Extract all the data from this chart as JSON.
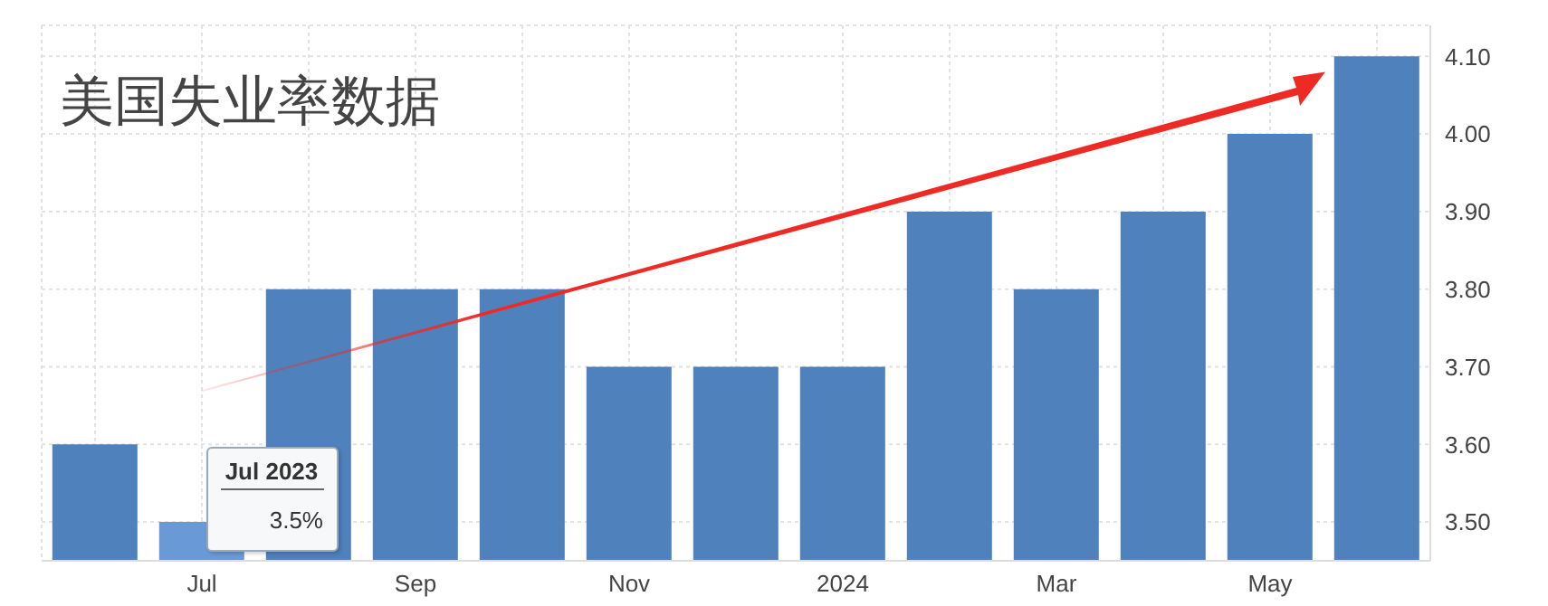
{
  "chart_data": {
    "type": "bar",
    "title": "美国失业率数据",
    "categories": [
      null,
      "Jul",
      null,
      "Sep",
      null,
      "Nov",
      null,
      "2024",
      null,
      "Mar",
      null,
      "May",
      null
    ],
    "values": [
      3.6,
      3.5,
      3.8,
      3.8,
      3.8,
      3.7,
      3.7,
      3.7,
      3.9,
      3.8,
      3.9,
      4.0,
      4.1
    ],
    "colors": [
      "#4f81bd",
      "#6a9ad6",
      "#4f81bd",
      "#4f81bd",
      "#4f81bd",
      "#4f81bd",
      "#4f81bd",
      "#4f81bd",
      "#4f81bd",
      "#4f81bd",
      "#4f81bd",
      "#4f81bd",
      "#4f81bd"
    ],
    "ylim": [
      3.45,
      4.14
    ],
    "yticks": [
      {
        "value": 3.5,
        "label": "3.50"
      },
      {
        "value": 3.6,
        "label": "3.60"
      },
      {
        "value": 3.7,
        "label": "3.70"
      },
      {
        "value": 3.8,
        "label": "3.80"
      },
      {
        "value": 3.9,
        "label": "3.90"
      },
      {
        "value": 4.0,
        "label": "4.00"
      },
      {
        "value": 4.1,
        "label": "4.10"
      }
    ],
    "grid": true,
    "annotations": [
      {
        "text": "Jul 2023",
        "x": "Jul",
        "y": 3.5
      },
      {
        "text": "3.5%",
        "x": "Jul",
        "y": 3.5
      }
    ]
  }
}
